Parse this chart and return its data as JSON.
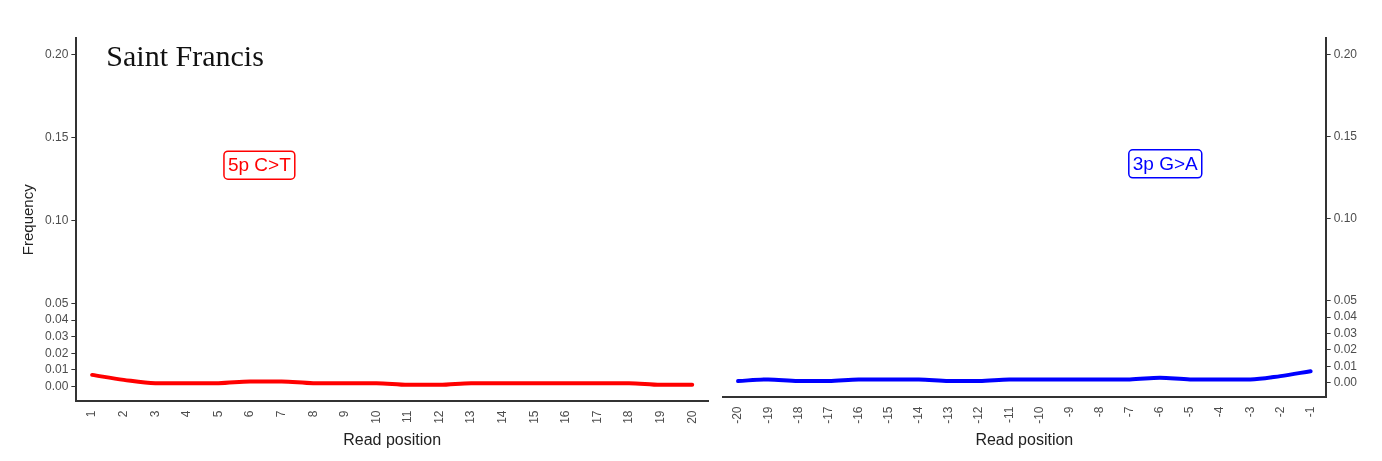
{
  "chart_data": [
    {
      "type": "line",
      "title": "Saint Francis",
      "xlabel": "Read position",
      "ylabel": "Frequency",
      "annotations": [
        "5p C>T"
      ],
      "categories": [
        "1",
        "2",
        "3",
        "4",
        "5",
        "6",
        "7",
        "8",
        "9",
        "10",
        "11",
        "12",
        "13",
        "14",
        "15",
        "16",
        "17",
        "18",
        "19",
        "20"
      ],
      "series": [
        {
          "color": "#ff0000",
          "values": [
            0.007,
            0.004,
            0.002,
            0.002,
            0.002,
            0.003,
            0.003,
            0.002,
            0.002,
            0.002,
            0.001,
            0.001,
            0.002,
            0.002,
            0.002,
            0.002,
            0.002,
            0.002,
            0.001,
            0.001
          ]
        }
      ],
      "ylim": [
        -0.009,
        0.21
      ],
      "yticks": [
        {
          "value": 0,
          "label": "0.00"
        },
        {
          "value": 0.01,
          "label": "0.01"
        },
        {
          "value": 0.02,
          "label": "0.02"
        },
        {
          "value": 0.03,
          "label": "0.03"
        },
        {
          "value": 0.04,
          "label": "0.04"
        },
        {
          "value": 0.05,
          "label": "0.05"
        },
        {
          "value": 0.1,
          "label": "0.10"
        },
        {
          "value": 0.15,
          "label": "0.15"
        },
        {
          "value": 0.2,
          "label": "0.20"
        }
      ],
      "legend": false,
      "marker": "none",
      "line_style": "solid"
    },
    {
      "type": "line",
      "xlabel": "Read position",
      "annotations": [
        "3p G>A"
      ],
      "categories": [
        "-20",
        "-19",
        "-18",
        "-17",
        "-16",
        "-15",
        "-14",
        "-13",
        "-12",
        "-11",
        "-10",
        "-9",
        "-8",
        "-7",
        "-6",
        "-5",
        "-4",
        "-3",
        "-2",
        "-1"
      ],
      "series": [
        {
          "color": "#0000ff",
          "axis": "y2",
          "values": [
            0.001,
            0.002,
            0.001,
            0.001,
            0.002,
            0.002,
            0.002,
            0.001,
            0.001,
            0.002,
            0.002,
            0.002,
            0.002,
            0.002,
            0.003,
            0.002,
            0.002,
            0.002,
            0.004,
            0.007
          ]
        }
      ],
      "y2lim": [
        -0.009,
        0.21
      ],
      "y2ticks": [
        {
          "value": 0,
          "label": "0.00"
        },
        {
          "value": 0.01,
          "label": "0.01"
        },
        {
          "value": 0.02,
          "label": "0.02"
        },
        {
          "value": 0.03,
          "label": "0.03"
        },
        {
          "value": 0.04,
          "label": "0.04"
        },
        {
          "value": 0.05,
          "label": "0.05"
        },
        {
          "value": 0.1,
          "label": "0.10"
        },
        {
          "value": 0.15,
          "label": "0.15"
        },
        {
          "value": 0.2,
          "label": "0.20"
        }
      ],
      "legend": false,
      "marker": "none",
      "line_style": "solid"
    }
  ]
}
